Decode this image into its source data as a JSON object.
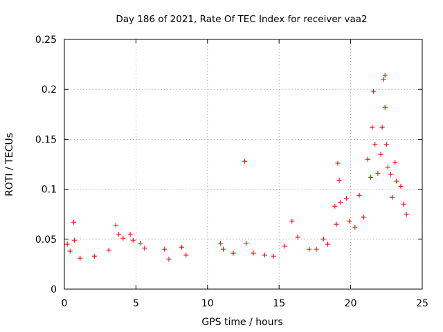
{
  "chart_data": {
    "type": "scatter",
    "title": "Day 186 of 2021, Rate Of TEC Index for receiver vaa2",
    "xlabel": "GPS time / hours",
    "ylabel": "ROTI / TECUs",
    "xlim": [
      0,
      25
    ],
    "ylim": [
      0,
      0.25
    ],
    "x_ticks": [
      "0",
      "5",
      "10",
      "15",
      "20",
      "25"
    ],
    "y_ticks": [
      "0",
      "0.05",
      "0.1",
      "0.15",
      "0.2",
      "0.25"
    ],
    "grid": true,
    "marker": "+",
    "color": "#ff0000",
    "series": [
      {
        "name": "",
        "points": [
          [
            0.65,
            0.067
          ],
          [
            0.2,
            0.045
          ],
          [
            0.7,
            0.049
          ],
          [
            0.4,
            0.038
          ],
          [
            1.1,
            0.031
          ],
          [
            2.1,
            0.033
          ],
          [
            3.1,
            0.039
          ],
          [
            3.6,
            0.064
          ],
          [
            3.8,
            0.055
          ],
          [
            4.1,
            0.051
          ],
          [
            4.6,
            0.055
          ],
          [
            4.8,
            0.049
          ],
          [
            5.3,
            0.046
          ],
          [
            5.6,
            0.041
          ],
          [
            7.0,
            0.04
          ],
          [
            7.3,
            0.03
          ],
          [
            8.2,
            0.042
          ],
          [
            8.5,
            0.034
          ],
          [
            10.9,
            0.046
          ],
          [
            11.1,
            0.04
          ],
          [
            11.8,
            0.036
          ],
          [
            12.6,
            0.128
          ],
          [
            12.7,
            0.046
          ],
          [
            13.2,
            0.036
          ],
          [
            14.0,
            0.034
          ],
          [
            14.6,
            0.033
          ],
          [
            15.4,
            0.043
          ],
          [
            15.9,
            0.068
          ],
          [
            16.3,
            0.052
          ],
          [
            17.1,
            0.04
          ],
          [
            17.6,
            0.04
          ],
          [
            18.1,
            0.05
          ],
          [
            18.4,
            0.045
          ],
          [
            18.9,
            0.083
          ],
          [
            19.0,
            0.065
          ],
          [
            19.1,
            0.126
          ],
          [
            19.2,
            0.109
          ],
          [
            19.3,
            0.087
          ],
          [
            19.7,
            0.091
          ],
          [
            19.9,
            0.068
          ],
          [
            20.3,
            0.062
          ],
          [
            20.6,
            0.094
          ],
          [
            20.9,
            0.072
          ],
          [
            21.2,
            0.13
          ],
          [
            21.4,
            0.112
          ],
          [
            21.5,
            0.162
          ],
          [
            21.6,
            0.198
          ],
          [
            21.7,
            0.145
          ],
          [
            21.9,
            0.116
          ],
          [
            22.1,
            0.135
          ],
          [
            22.2,
            0.162
          ],
          [
            22.3,
            0.21
          ],
          [
            22.4,
            0.214
          ],
          [
            22.4,
            0.182
          ],
          [
            22.5,
            0.145
          ],
          [
            22.6,
            0.122
          ],
          [
            22.8,
            0.115
          ],
          [
            22.9,
            0.092
          ],
          [
            23.1,
            0.127
          ],
          [
            23.2,
            0.108
          ],
          [
            23.5,
            0.103
          ],
          [
            23.7,
            0.085
          ],
          [
            23.9,
            0.075
          ]
        ]
      }
    ]
  }
}
